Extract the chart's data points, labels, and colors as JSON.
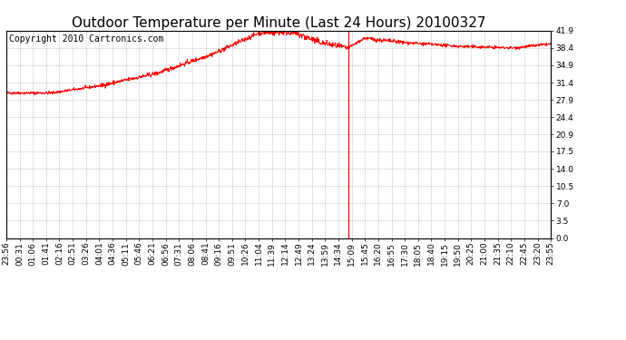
{
  "title": "Outdoor Temperature per Minute (Last 24 Hours) 20100327",
  "copyright_text": "Copyright 2010 Cartronics.com",
  "line_color": "#ff0000",
  "background_color": "#ffffff",
  "plot_bg_color": "#ffffff",
  "grid_color": "#bbbbbb",
  "yticks": [
    0.0,
    3.5,
    7.0,
    10.5,
    14.0,
    17.5,
    20.9,
    24.4,
    27.9,
    31.4,
    34.9,
    38.4,
    41.9
  ],
  "ymin": 0.0,
  "ymax": 41.9,
  "vline_x_index": 905,
  "x_tick_labels": [
    "23:56",
    "00:31",
    "01:06",
    "01:41",
    "02:16",
    "02:51",
    "03:26",
    "04:01",
    "04:36",
    "05:11",
    "05:46",
    "06:21",
    "06:56",
    "07:31",
    "08:06",
    "08:41",
    "09:16",
    "09:51",
    "10:26",
    "11:04",
    "11:39",
    "12:14",
    "12:49",
    "13:24",
    "13:59",
    "14:34",
    "15:09",
    "15:45",
    "16:20",
    "16:55",
    "17:30",
    "18:05",
    "18:40",
    "19:15",
    "19:50",
    "20:25",
    "21:00",
    "21:35",
    "22:10",
    "22:45",
    "23:20",
    "23:55"
  ],
  "title_fontsize": 11,
  "copyright_fontsize": 7,
  "tick_fontsize": 6.5
}
